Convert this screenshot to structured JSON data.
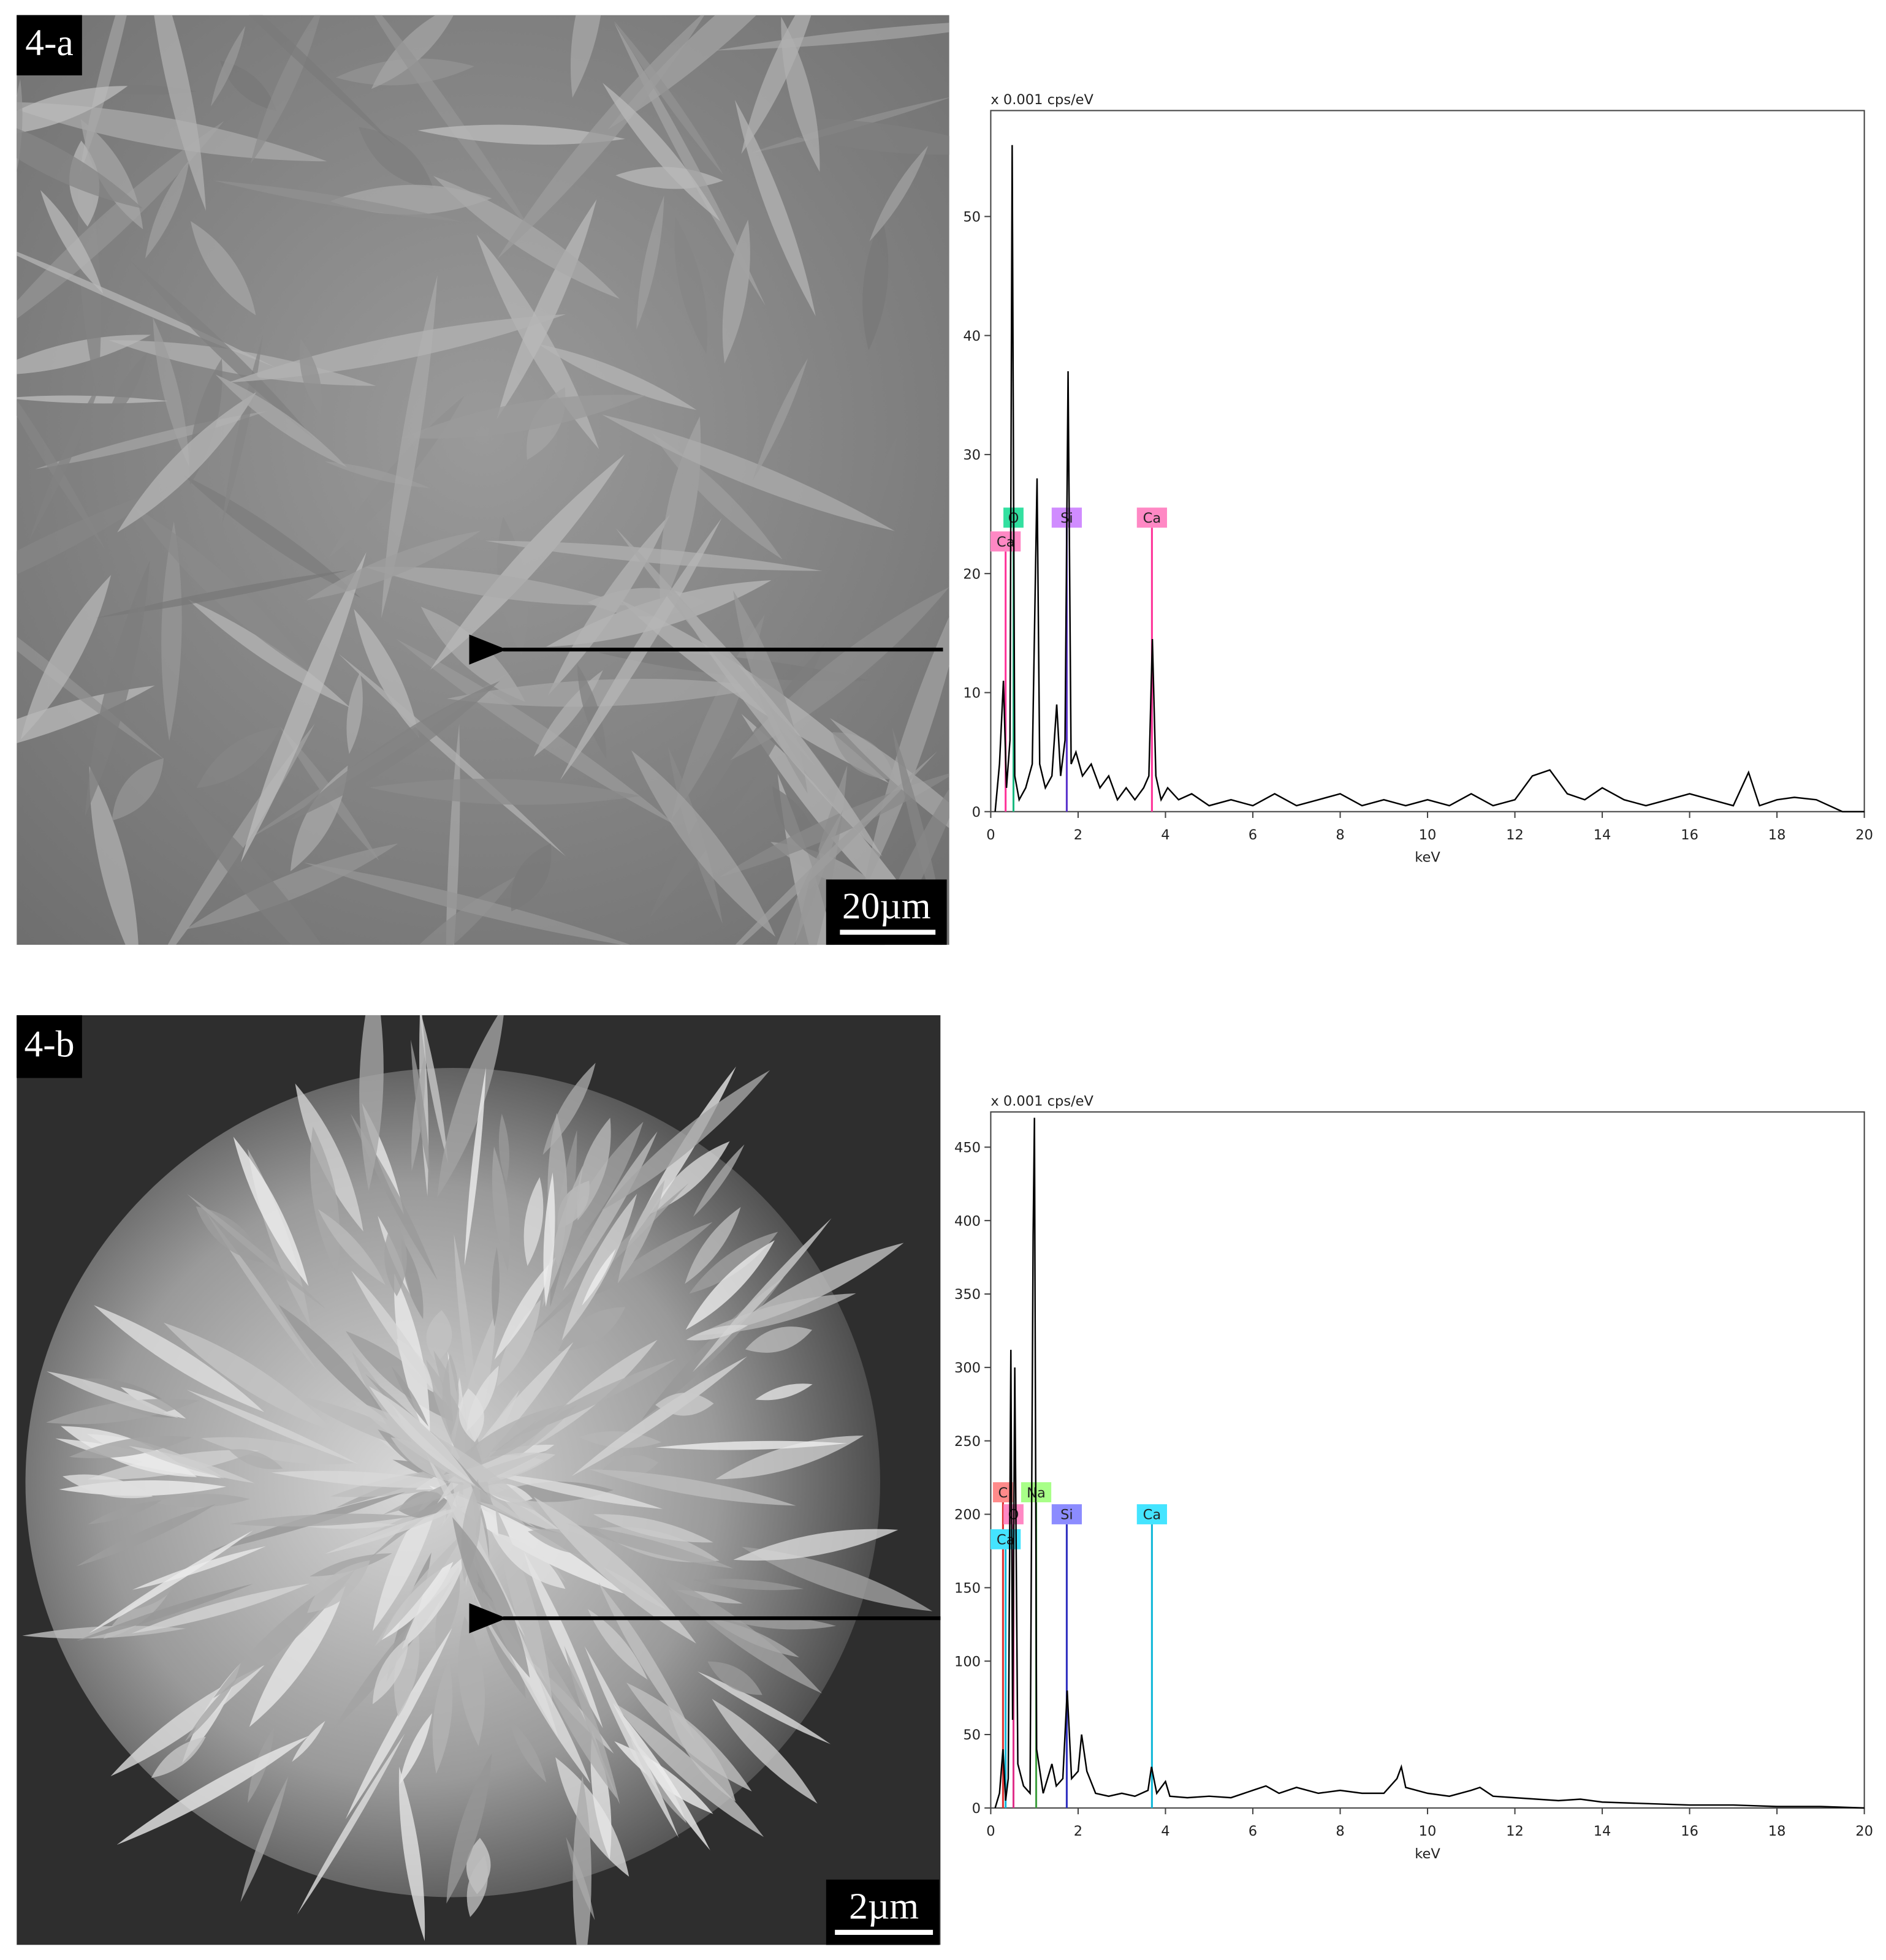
{
  "panels": [
    {
      "label": "4-a",
      "scale_bar": "20µm"
    },
    {
      "label": "4-b",
      "scale_bar": "2µm"
    }
  ],
  "chart_data": [
    {
      "type": "line",
      "ylabel": "x 0.001 cps/eV",
      "xlabel": "keV",
      "color": "#000000",
      "xlim": [
        0,
        20
      ],
      "xticks": [
        0,
        2,
        4,
        6,
        8,
        10,
        12,
        14,
        16,
        18,
        20
      ],
      "ylim": [
        0,
        58.9
      ],
      "yticks": [
        0,
        10,
        20,
        30,
        40,
        50
      ],
      "x": [
        0.1,
        0.2,
        0.29,
        0.36,
        0.44,
        0.49,
        0.55,
        0.65,
        0.8,
        0.95,
        1.06,
        1.12,
        1.25,
        1.4,
        1.51,
        1.6,
        1.7,
        1.77,
        1.84,
        1.95,
        2.1,
        2.3,
        2.5,
        2.7,
        2.9,
        3.1,
        3.3,
        3.5,
        3.62,
        3.7,
        3.78,
        3.9,
        4.05,
        4.3,
        4.6,
        5,
        5.5,
        6,
        6.5,
        7,
        7.5,
        8,
        8.5,
        9,
        9.5,
        10,
        10.5,
        11,
        11.5,
        12,
        12.4,
        12.8,
        13.2,
        13.6,
        14,
        14.5,
        15,
        15.5,
        16,
        16.5,
        17,
        17.35,
        17.6,
        18,
        18.4,
        18.9,
        19.5,
        20
      ],
      "values": [
        0,
        4,
        11,
        2,
        6,
        56,
        3,
        1,
        2,
        4,
        28,
        4,
        2,
        3,
        9,
        3,
        6,
        37,
        4,
        5,
        3,
        4,
        2,
        3,
        1,
        2,
        1,
        2,
        3,
        14.5,
        3,
        1,
        2,
        1,
        1.5,
        0.5,
        1,
        0.5,
        1.5,
        0.5,
        1,
        1.5,
        0.5,
        1,
        0.5,
        1,
        0.5,
        1.5,
        0.5,
        1,
        3,
        3.5,
        1.5,
        1,
        2,
        1,
        0.5,
        1,
        1.5,
        1,
        0.5,
        3.3,
        0.5,
        1,
        1.2,
        1,
        0,
        0
      ],
      "annotations": [
        {
          "label": "O",
          "x": 0.52,
          "y": 24.7,
          "color": "#19b980",
          "box": "#33e0a0"
        },
        {
          "label": "Ca",
          "x": 0.34,
          "y": 22.7,
          "color": "#ff3399",
          "box": "#ff88c4"
        },
        {
          "label": "Si",
          "x": 1.74,
          "y": 24.7,
          "color": "#5a33cc",
          "box": "#d08cff"
        },
        {
          "label": "Ca",
          "x": 3.69,
          "y": 24.7,
          "color": "#ff3399",
          "box": "#ff88c4"
        }
      ]
    },
    {
      "type": "line",
      "ylabel": "x 0.001 cps/eV",
      "xlabel": "keV",
      "color": "#000000",
      "xlim": [
        0,
        20
      ],
      "xticks": [
        0,
        2,
        4,
        6,
        8,
        10,
        12,
        14,
        16,
        18,
        20
      ],
      "ylim": [
        0,
        474
      ],
      "yticks": [
        0,
        50,
        100,
        150,
        200,
        250,
        300,
        350,
        400,
        450
      ],
      "x": [
        0.1,
        0.2,
        0.28,
        0.34,
        0.4,
        0.46,
        0.5,
        0.55,
        0.62,
        0.75,
        0.9,
        0.97,
        1.0,
        1.05,
        1.2,
        1.4,
        1.5,
        1.65,
        1.75,
        1.85,
        2.0,
        2.08,
        2.2,
        2.4,
        2.7,
        3.0,
        3.3,
        3.6,
        3.68,
        3.8,
        4.0,
        4.1,
        4.5,
        5,
        5.5,
        6,
        6.3,
        6.6,
        7,
        7.5,
        8,
        8.5,
        9,
        9.3,
        9.4,
        9.5,
        10,
        10.5,
        11,
        11.2,
        11.5,
        12,
        12.5,
        13,
        13.5,
        14,
        15,
        16,
        17,
        18,
        19,
        20
      ],
      "values": [
        0,
        10,
        40,
        5,
        20,
        312,
        60,
        300,
        30,
        15,
        10,
        390,
        470,
        40,
        10,
        30,
        15,
        20,
        80,
        20,
        25,
        50,
        25,
        10,
        8,
        10,
        8,
        12,
        28,
        10,
        18,
        8,
        7,
        8,
        7,
        12,
        15,
        10,
        14,
        10,
        12,
        10,
        10,
        20,
        28,
        14,
        10,
        8,
        12,
        14,
        8,
        7,
        6,
        5,
        6,
        4,
        3,
        2,
        2,
        1,
        1,
        0
      ],
      "annotations": [
        {
          "label": "C",
          "x": 0.28,
          "y": 215,
          "color": "#e03030",
          "box": "#ff8a8a"
        },
        {
          "label": "Na",
          "x": 1.04,
          "y": 215,
          "color": "#40a040",
          "box": "#a8ff88"
        },
        {
          "label": "O",
          "x": 0.52,
          "y": 200,
          "color": "#e0308a",
          "box": "#ff88c4"
        },
        {
          "label": "Si",
          "x": 1.74,
          "y": 200,
          "color": "#3030c0",
          "box": "#8c8cff"
        },
        {
          "label": "Ca",
          "x": 3.69,
          "y": 200,
          "color": "#10b8d8",
          "box": "#44e4ff"
        },
        {
          "label": "Ca",
          "x": 0.34,
          "y": 183,
          "color": "#10b8d8",
          "box": "#44e4ff"
        }
      ]
    }
  ]
}
